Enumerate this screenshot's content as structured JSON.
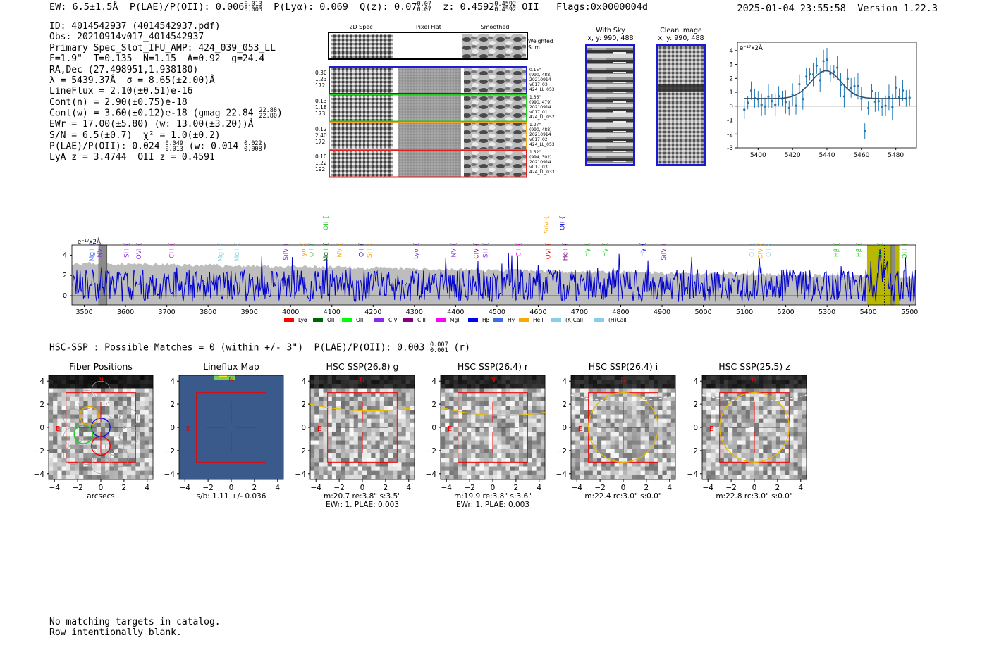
{
  "header": {
    "ew": "EW: 6.5±1.5Å",
    "plae_label": "P(LAE)/P(OII): 0.006",
    "plae_hi": "0.013",
    "plae_lo": "0.003",
    "plya": "P(Lyα): 0.069",
    "qz_label": "Q(z): 0.07",
    "qz_hi": "0.07",
    "qz_lo": "0.07",
    "z_label": "z: 0.4592",
    "z_hi": "0.4592",
    "z_lo": "0.4592",
    "z_line": "OII",
    "flags": "Flags:0x0000004d",
    "datetime": "2025-01-04 23:55:58",
    "version": "Version 1.22.3"
  },
  "info": {
    "id": "ID: 4014542937 (4014542937.pdf)",
    "obs": "Obs: 20210914v017_4014542937",
    "primary": "Primary Spec_Slot_IFU_AMP: 424_039_053_LL",
    "fitparams": "F=1.9\"  T=0.135  N=1.15  A=0.92  g=24.4",
    "radec": "RA,Dec (27.498951,1.938180)",
    "lambda": "λ = 5439.37Å  σ = 8.65(±2.00)Å",
    "lineflux": "LineFlux = 2.10(±0.51)e-16",
    "contn": "Cont(n) = 2.90(±0.75)e-18",
    "contw": "Cont(w) = 3.60(±0.12)e-18 (gmag 22.84",
    "gmag_hi": "22.88",
    "gmag_lo": "22.80",
    "ewr": "EWr = 17.00(±5.80) (w: 13.00(±3.20))Å",
    "sn": "S/N = 6.5(±0.7)  χ² = 1.0(±0.2)",
    "plae2": "P(LAE)/P(OII): 0.024",
    "plae2_hi": "0.049",
    "plae2_lo": "0.013",
    "plae2_w": "(w: 0.014",
    "plae2_w_hi": "0.022",
    "plae2_w_lo": "0.008",
    "lya_z": "LyA z = 3.4744  OII z = 0.4591"
  },
  "cutouts": {
    "col_2d": "2D Spec",
    "col_flat": "Pixel Flat",
    "col_smooth": "Smoothed",
    "weighted": "Weighted\nSum",
    "rows": [
      {
        "color": "#1f1fd0",
        "left": "0.30\n1.23\n172",
        "right": "0.15\"\n(990, 488)\n20210914\nv017_03\n424_LL_053"
      },
      {
        "color": "#22cc22",
        "left": "0.13\n1.18\n173",
        "right": "1.36\"\n(990, 479)\n20210914\nv017_01\n424_LL_052"
      },
      {
        "color": "#f5a623",
        "left": "0.12\n2.40\n172",
        "right": "1.27\"\n(990, 488)\n20210914\nv017_02\n424_LL_053"
      },
      {
        "color": "#e02020",
        "left": "0.10\n1.22\n192",
        "right": "1.52\"\n(994, 302)\n20210914\nv017_03\n424_LL_033"
      }
    ],
    "with_sky_title": "With Sky",
    "with_sky_xy": "x, y: 990, 488",
    "clean_title": "Clean Image",
    "clean_xy": "x, y: 990, 488"
  },
  "line_fit": {
    "unit": "e⁻¹⁷x2Å",
    "x_ticks": [
      "5400",
      "5420",
      "5440",
      "5460",
      "5480"
    ],
    "y_ticks": [
      "4",
      "3",
      "2",
      "1",
      "0",
      "-1",
      "-2",
      "-3"
    ]
  },
  "spectrum": {
    "unit": "e⁻¹⁷x2Å",
    "x_ticks": [
      "3500",
      "3600",
      "3700",
      "3800",
      "3900",
      "4000",
      "4100",
      "4200",
      "4300",
      "4400",
      "4500",
      "4600",
      "4700",
      "4800",
      "4900",
      "5000",
      "5100",
      "5200",
      "5300",
      "5400",
      "5500"
    ],
    "y_ticks": [
      "4",
      "2",
      "0"
    ],
    "line_labels": [
      {
        "t": "MgII",
        "c": "#4169e1",
        "w": 3518
      },
      {
        "t": "NV",
        "c": "#8a2be2",
        "w": 3537
      },
      {
        "t": "SiII",
        "c": "#8a2be2",
        "w": 3602
      },
      {
        "t": "OVI",
        "c": "#8a2be2",
        "w": 3632
      },
      {
        "t": "CIII",
        "c": "#ff00ff",
        "w": 3712
      },
      {
        "t": "MgII",
        "c": "#87ceeb",
        "w": 3830
      },
      {
        "t": "MgII",
        "c": "#87ceeb",
        "w": 3870
      },
      {
        "t": "SiIV",
        "c": "#8a2be2",
        "w": 3988
      },
      {
        "t": "Lyα",
        "c": "#ffa500",
        "w": 4030
      },
      {
        "t": "OII",
        "c": "#22cc22",
        "w": 4050
      },
      {
        "t": "MgII",
        "c": "#006400",
        "w": 4085
      },
      {
        "t": "NV",
        "c": "#ffa500",
        "w": 4118
      },
      {
        "t": "OII",
        "c": "#0000cd",
        "w": 4171
      },
      {
        "t": "SiII",
        "c": "#ffa500",
        "w": 4191
      },
      {
        "t": "Lyα",
        "c": "#8a2be2",
        "w": 4304
      },
      {
        "t": "NV",
        "c": "#8a2be2",
        "w": 4395
      },
      {
        "t": "CIV",
        "c": "#800080",
        "w": 4450
      },
      {
        "t": "SiII",
        "c": "#8a2be2",
        "w": 4472
      },
      {
        "t": "CII",
        "c": "#ff00ff",
        "w": 4552
      },
      {
        "t": "OVI",
        "c": "#ff0000",
        "w": 4624
      },
      {
        "t": "HeII",
        "c": "#800080",
        "w": 4665
      },
      {
        "t": "Hγ",
        "c": "#22cc22",
        "w": 4718
      },
      {
        "t": "Hγ",
        "c": "#22cc22",
        "w": 4762
      },
      {
        "t": "Hγ",
        "c": "#0000cd",
        "w": 4853
      },
      {
        "t": "SiIV",
        "c": "#8a2be2",
        "w": 4903
      },
      {
        "t": "OII",
        "c": "#87ceeb",
        "w": 5118
      },
      {
        "t": "CIV",
        "c": "#ffa500",
        "w": 5138
      },
      {
        "t": "OII",
        "c": "#87ceeb",
        "w": 5158
      },
      {
        "t": "Hβ",
        "c": "#22cc22",
        "w": 5323
      },
      {
        "t": "Hβ",
        "c": "#22cc22",
        "w": 5377
      },
      {
        "t": "OIII",
        "c": "#22cc22",
        "w": 5428
      },
      {
        "t": "OIII",
        "c": "#22cc22",
        "w": 5488
      }
    ],
    "upper_labels": [
      {
        "t": "OII",
        "c": "#22cc22",
        "w": 4085
      },
      {
        "t": "SiIV",
        "c": "#ffa500",
        "w": 4620
      },
      {
        "t": "OII",
        "c": "#0000cd",
        "w": 4658
      }
    ],
    "legend": [
      {
        "t": "Lyα",
        "c": "#ff0000"
      },
      {
        "t": "OII",
        "c": "#006400"
      },
      {
        "t": "OIII",
        "c": "#00ff00"
      },
      {
        "t": "CIV",
        "c": "#8a2be2"
      },
      {
        "t": "CIII",
        "c": "#800080"
      },
      {
        "t": "MgII",
        "c": "#ff00ff"
      },
      {
        "t": "Hβ",
        "c": "#0000ff"
      },
      {
        "t": "Hγ",
        "c": "#4169e1"
      },
      {
        "t": "HeII",
        "c": "#ffa500"
      },
      {
        "t": "(K)CaII",
        "c": "#87ceeb"
      },
      {
        "t": "(H)CaII",
        "c": "#87ceeb"
      }
    ]
  },
  "hsc": {
    "line": "HSC-SSP : Possible Matches = 0 (within +/- 3\")  P(LAE)/P(OII): 0.003",
    "plae_hi": "0.007",
    "plae_lo": "0.001",
    "band": "(r)",
    "panels": [
      {
        "title": "Fiber Positions",
        "caption": "arcsecs"
      },
      {
        "title": "Lineflux Map",
        "caption": "s/b: 1.11 +/- 0.036"
      },
      {
        "title": "HSC SSP(26.8) g",
        "caption": "m:20.7  re:3.8\"  s:3.5\"\nEWr: 1. PLAE: 0.003"
      },
      {
        "title": "HSC SSP(26.4) r",
        "caption": "m:19.9  re:3.8\"  s:3.6\"\nEWr: 1. PLAE: 0.003"
      },
      {
        "title": "HSC SSP(26.4) i",
        "caption": "m:22.4 rc:3.0\"  s:0.0\""
      },
      {
        "title": "HSC SSP(25.5) z",
        "caption": "m:22.8 rc:3.0\"  s:0.0\""
      }
    ],
    "axis_ticks": [
      "4",
      "2",
      "0",
      "−2",
      "−4"
    ],
    "x_ticks": [
      "−4",
      "−2",
      "0",
      "2",
      "4"
    ],
    "north": "N",
    "east": "E"
  },
  "footer": {
    "line1": "No matching targets in catalog.",
    "line2": "Row intentionally blank."
  }
}
